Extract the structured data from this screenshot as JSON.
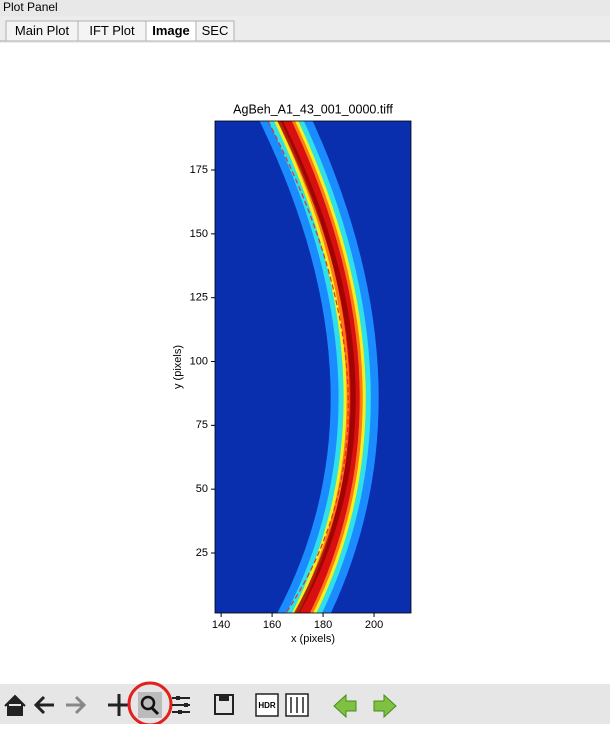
{
  "window": {
    "title": "Plot Panel"
  },
  "tabs": {
    "labels": [
      "Main Plot",
      "IFT Plot",
      "Image",
      "SEC"
    ],
    "active": 2
  },
  "chart_data": {
    "type": "image",
    "title": "AgBeh_A1_43_001_0000.tiff",
    "x_label": "x (pixels)",
    "y_label": "y (pixels)",
    "xlim": [
      137.6,
      214.5
    ],
    "ylim": [
      1.5,
      194.2
    ],
    "xticks": [
      140,
      160,
      180,
      200
    ],
    "yticks": [
      25,
      50,
      75,
      100,
      125,
      150,
      175
    ]
  },
  "toolbar": {
    "hdr_label": "HDR"
  }
}
